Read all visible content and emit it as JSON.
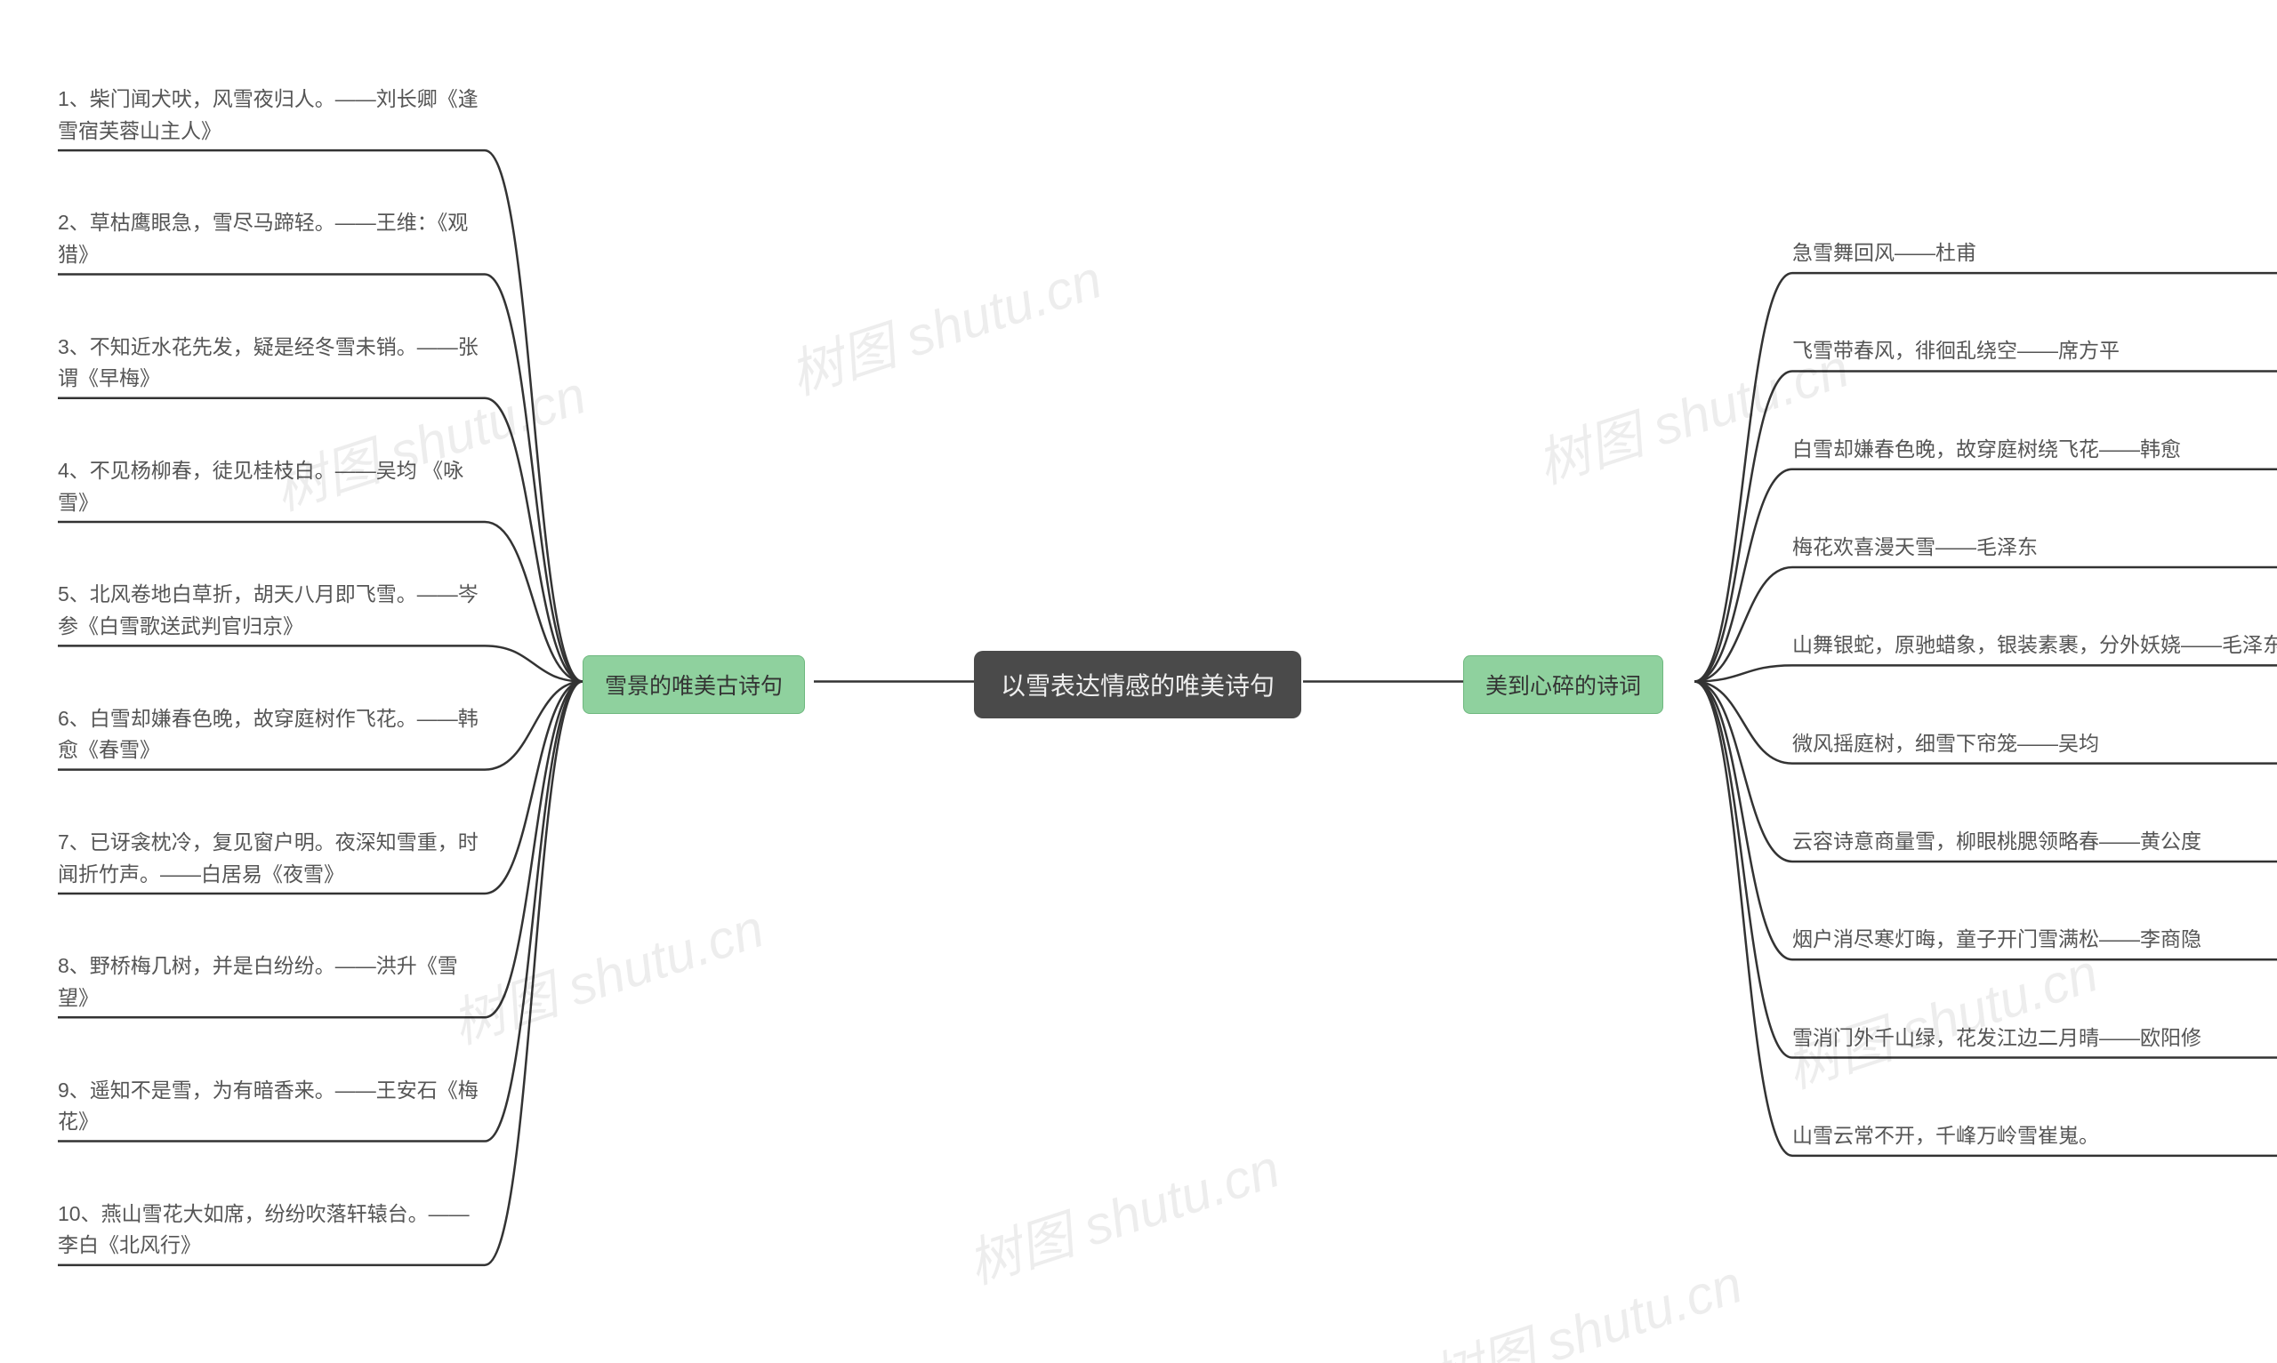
{
  "type": "mindmap",
  "background_color": "#ffffff",
  "font_family": "Microsoft YaHei",
  "root": {
    "text": "以雪表达情感的唯美诗句",
    "bg_color": "#4a4a4a",
    "text_color": "#eeeeee",
    "font_size": 28,
    "border_radius": 10
  },
  "left_branch": {
    "label": "雪景的唯美古诗句",
    "bg_color": "#8fd19e",
    "text_color": "#333333",
    "font_size": 25,
    "items": [
      "1、柴门闻犬吠，风雪夜归人。——刘长卿《逢雪宿芙蓉山主人》",
      "2、草枯鹰眼急，雪尽马蹄轻。——王维：《观猎》",
      "3、不知近水花先发，疑是经冬雪未销。——张谓《早梅》",
      "4、不见杨柳春，徒见桂枝白。——吴均 《咏雪》",
      "5、北风卷地白草折，胡天八月即飞雪。——岑参《白雪歌送武判官归京》",
      "6、白雪却嫌春色晚，故穿庭树作飞花。——韩愈《春雪》",
      "7、已讶衾枕冷，复见窗户明。夜深知雪重，时闻折竹声。——白居易《夜雪》",
      "8、野桥梅几树，并是白纷纷。——洪升《雪望》",
      "9、遥知不是雪，为有暗香来。——王安石《梅花》",
      "10、燕山雪花大如席，纷纷吹落轩辕台。——李白《北风行》"
    ]
  },
  "right_branch": {
    "label": "美到心碎的诗词",
    "bg_color": "#8fd19e",
    "text_color": "#333333",
    "font_size": 25,
    "items": [
      "急雪舞回风——杜甫",
      "飞雪带春风，徘徊乱绕空——席方平",
      "白雪却嫌春色晚，故穿庭树绕飞花——韩愈",
      "梅花欢喜漫天雪——毛泽东",
      "山舞银蛇，原驰蜡象，银装素裹，分外妖娆——毛泽东",
      "微风摇庭树，细雪下帘笼——吴均",
      "云容诗意商量雪，柳眼桃腮领略春——黄公度",
      "烟户消尽寒灯晦，童子开门雪满松——李商隐",
      "雪消门外千山绿，花发江边二月晴——欧阳修",
      "山雪云常不开，千峰万岭雪崔嵬。"
    ]
  },
  "connector_color": "#333333",
  "connector_width": 2.5,
  "watermark": {
    "text": "树图 shutu.cn",
    "color_rgba": "rgba(0,0,0,0.07)",
    "font_size": 60,
    "rotation_deg": -18
  },
  "leaf_text_color": "#555555",
  "leaf_font_size": 23
}
